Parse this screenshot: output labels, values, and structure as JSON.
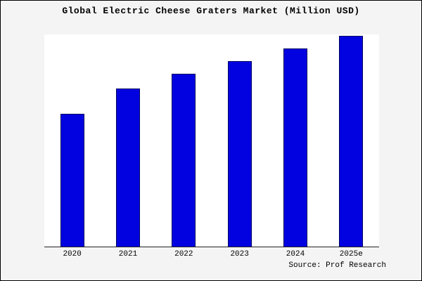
{
  "title": "Global Electric Cheese Graters Market (Million USD)",
  "source": "Source: Prof Research",
  "colors": {
    "bar_fill": "#0202e0",
    "bar_border": "#000060",
    "plot_bg": "#ffffff",
    "page_bg": "#f4f4f4",
    "axis": "#222222"
  },
  "chart_data": {
    "type": "bar",
    "categories": [
      "2020",
      "2021",
      "2022",
      "2023",
      "2024",
      "2025e"
    ],
    "values": [
      63,
      75,
      82,
      88,
      94,
      100
    ],
    "title": "Global Electric Cheese Graters Market (Million USD)",
    "xlabel": "",
    "ylabel": "",
    "ylim": [
      0,
      100
    ],
    "grid": false,
    "legend": false,
    "bar_color": "#0202e0",
    "source": "Source: Prof Research"
  }
}
